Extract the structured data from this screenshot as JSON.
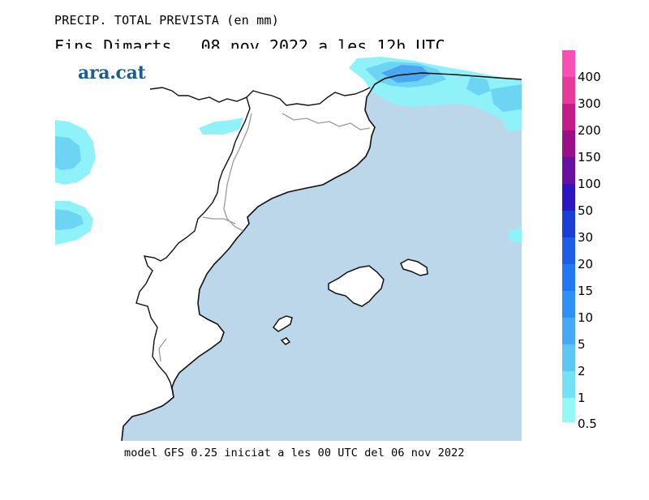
{
  "header": {
    "line1": "PRECIP. TOTAL PREVISTA (en mm)",
    "line2": "Fins Dimarts   08.nov.2022 a les 12h UTC",
    "brand": "ara.cat"
  },
  "footer": {
    "text": "model GFS 0.25 iniciat a les 00 UTC del 06 nov 2022"
  },
  "legend": {
    "labels": [
      "400",
      "300",
      "200",
      "150",
      "100",
      "50",
      "30",
      "20",
      "15",
      "10",
      "5",
      "2",
      "1",
      "0.5"
    ],
    "colors": [
      "#f74fb4",
      "#e8399c",
      "#c51b8a",
      "#9a0f88",
      "#6a10a0",
      "#2c16c4",
      "#1a3fd6",
      "#1d5ee8",
      "#2277f2",
      "#2f91f7",
      "#46a9f7",
      "#5cc6f5",
      "#74e2f4",
      "#96f7f9"
    ]
  },
  "map_colors": {
    "sea": "#bcd7ea",
    "land": "#ffffff",
    "precip_light": "#8ff2f8",
    "precip_mid": "#6ed4f3",
    "precip_strong": "#4aa8f2"
  }
}
